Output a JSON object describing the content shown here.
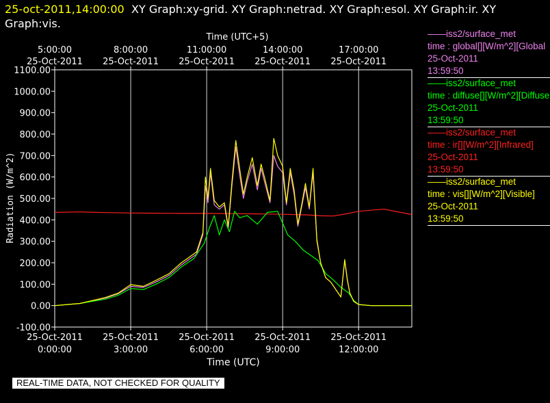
{
  "title_text": "25-oct-2011,14:00:00  XY Graph:xy-grid.  XY Graph:netrad.  XY Graph:esol.  XY Graph:ir.  XY Graph:vis.",
  "title_line1_yellow": "25-oct-2011,14:00:00",
  "title_line1_rest": "XY Graph:xy-grid.  XY Graph:netrad.  XY Graph:esol.  XY Graph:ir.  XY",
  "title_line2": "Graph:vis.",
  "top_axis_title": "Time (UTC+5)",
  "bottom_axis_title": "Time (UTC)",
  "y_axis_title": "Radiation (W/m^2)",
  "top_ticks": [
    {
      "time": "5:00:00",
      "date": "25-Oct-2011"
    },
    {
      "time": "8:00:00",
      "date": "25-Oct-2011"
    },
    {
      "time": "11:00:00",
      "date": "25-Oct-2011"
    },
    {
      "time": "14:00:00",
      "date": "25-Oct-2011"
    },
    {
      "time": "17:00:00",
      "date": "25-Oct-2011"
    }
  ],
  "bottom_ticks": [
    {
      "date": "25-Oct-2011",
      "time": "0:00:00"
    },
    {
      "date": "25-Oct-2011",
      "time": "3:00:00"
    },
    {
      "date": "25-Oct-2011",
      "time": "6:00:00"
    },
    {
      "date": "25-Oct-2011",
      "time": "9:00:00"
    },
    {
      "date": "25-Oct-2011",
      "time": "12:00:00"
    }
  ],
  "y_ticks": [
    "1100.00",
    "1000.00",
    "900.00",
    "800.00",
    "700.00",
    "600.00",
    "500.00",
    "400.00",
    "300.00",
    "200.00",
    "100.00",
    "0.00",
    "-100.00"
  ],
  "legend": [
    {
      "source": "iss2/surface_met",
      "var": "time : global[][W/m^2][Global",
      "date": "25-Oct-2011",
      "time": "13:59:50",
      "color": "#ee82ee"
    },
    {
      "source": "iss2/surface_met",
      "var": "time : diffuse[][W/m^2][Diffuse",
      "date": "25-Oct-2011",
      "time": "13:59:50",
      "color": "#00ff00"
    },
    {
      "source": "iss2/surface_met",
      "var": "time : ir[][W/m^2][Infrared]",
      "date": "25-Oct-2011",
      "time": "13:59:50",
      "color": "#ff2020"
    },
    {
      "source": "iss2/surface_met",
      "var": "time : vis[][W/m^2][Visible]",
      "date": "25-Oct-2011",
      "time": "13:59:50",
      "color": "#ffff00"
    }
  ],
  "note": "REAL-TIME DATA, NOT CHECKED FOR QUALITY",
  "colors": {
    "background": "#000000",
    "title_accent": "#ffff00",
    "grid": "#ffffff",
    "axis": "#ffffff"
  },
  "chart_data": {
    "type": "line",
    "xlabel": "Time (UTC)",
    "ylabel": "Radiation (W/m^2)",
    "xlim_hours": [
      0,
      14.1
    ],
    "ylim": [
      -100,
      1100
    ],
    "grid": "vertical",
    "legend_position": "right",
    "series": [
      {
        "name": "iss2/surface_met time : ir[][W/m^2][Infrared]",
        "color": "#ff2020",
        "x": [
          0,
          1,
          2,
          3,
          4,
          5,
          6,
          7,
          8,
          9,
          10,
          10.5,
          11,
          11.5,
          12,
          12.5,
          13,
          13.5,
          14.1
        ],
        "y": [
          435,
          437,
          434,
          432,
          431,
          430,
          430,
          429,
          428,
          426,
          423,
          419,
          418,
          428,
          440,
          445,
          450,
          438,
          425
        ]
      },
      {
        "name": "iss2/surface_met time : global[][W/m^2][Global",
        "color": "#ee82ee",
        "x": [
          0,
          1,
          2,
          2.5,
          3,
          3.5,
          4,
          4.5,
          5,
          5.3,
          5.6,
          5.85,
          5.95,
          6.05,
          6.15,
          6.3,
          6.5,
          6.7,
          6.85,
          7.0,
          7.15,
          7.3,
          7.45,
          7.6,
          7.8,
          8.0,
          8.15,
          8.3,
          8.5,
          8.65,
          8.8,
          9.0,
          9.15,
          9.3,
          9.45,
          9.6,
          9.75,
          9.9,
          10.05,
          10.2,
          10.35,
          10.5,
          10.7,
          10.9,
          11.1,
          11.3,
          11.45,
          11.55,
          11.65,
          11.8,
          12.0,
          12.5,
          13,
          13.5,
          14.1
        ],
        "y": [
          0,
          10,
          35,
          55,
          90,
          85,
          110,
          140,
          190,
          215,
          240,
          330,
          560,
          480,
          620,
          470,
          450,
          470,
          360,
          560,
          740,
          610,
          500,
          580,
          660,
          540,
          640,
          570,
          480,
          700,
          650,
          620,
          470,
          620,
          520,
          370,
          460,
          550,
          450,
          620,
          300,
          200,
          130,
          110,
          75,
          40,
          210,
          120,
          60,
          20,
          5,
          0,
          0,
          0,
          0
        ]
      },
      {
        "name": "iss2/surface_met time : diffuse[][W/m^2][Diffuse",
        "color": "#00ff00",
        "x": [
          0,
          1,
          2,
          2.5,
          3,
          3.5,
          4,
          4.5,
          5,
          5.5,
          5.9,
          6.1,
          6.3,
          6.5,
          6.7,
          6.9,
          7.1,
          7.3,
          7.6,
          8.0,
          8.4,
          8.8,
          9.2,
          9.5,
          9.8,
          10.1,
          10.4,
          10.7,
          11.0,
          11.3,
          11.6,
          11.8,
          12.0,
          12.5,
          13,
          14.1
        ],
        "y": [
          0,
          10,
          30,
          48,
          80,
          75,
          100,
          130,
          180,
          220,
          290,
          360,
          420,
          330,
          400,
          345,
          440,
          410,
          420,
          380,
          435,
          440,
          330,
          300,
          260,
          235,
          210,
          150,
          120,
          85,
          60,
          25,
          5,
          0,
          0,
          0
        ]
      },
      {
        "name": "iss2/surface_met time : vis[][W/m^2][Visible]",
        "color": "#ffff00",
        "x": [
          0,
          1,
          2,
          2.5,
          3,
          3.5,
          4,
          4.5,
          5,
          5.3,
          5.6,
          5.85,
          5.95,
          6.05,
          6.15,
          6.3,
          6.5,
          6.7,
          6.85,
          7.0,
          7.15,
          7.3,
          7.45,
          7.6,
          7.8,
          8.0,
          8.15,
          8.3,
          8.5,
          8.65,
          8.8,
          9.0,
          9.15,
          9.3,
          9.45,
          9.6,
          9.75,
          9.9,
          10.05,
          10.2,
          10.35,
          10.5,
          10.7,
          10.9,
          11.1,
          11.3,
          11.45,
          11.55,
          11.65,
          11.8,
          12.0,
          12.5,
          13,
          13.5,
          14.1
        ],
        "y": [
          0,
          10,
          38,
          58,
          98,
          90,
          118,
          148,
          200,
          225,
          250,
          340,
          600,
          500,
          640,
          490,
          460,
          480,
          370,
          580,
          770,
          640,
          520,
          600,
          690,
          560,
          660,
          590,
          490,
          780,
          700,
          650,
          480,
          640,
          540,
          380,
          470,
          570,
          460,
          640,
          310,
          200,
          130,
          110,
          75,
          40,
          215,
          125,
          60,
          20,
          5,
          0,
          0,
          0,
          0
        ]
      }
    ]
  }
}
